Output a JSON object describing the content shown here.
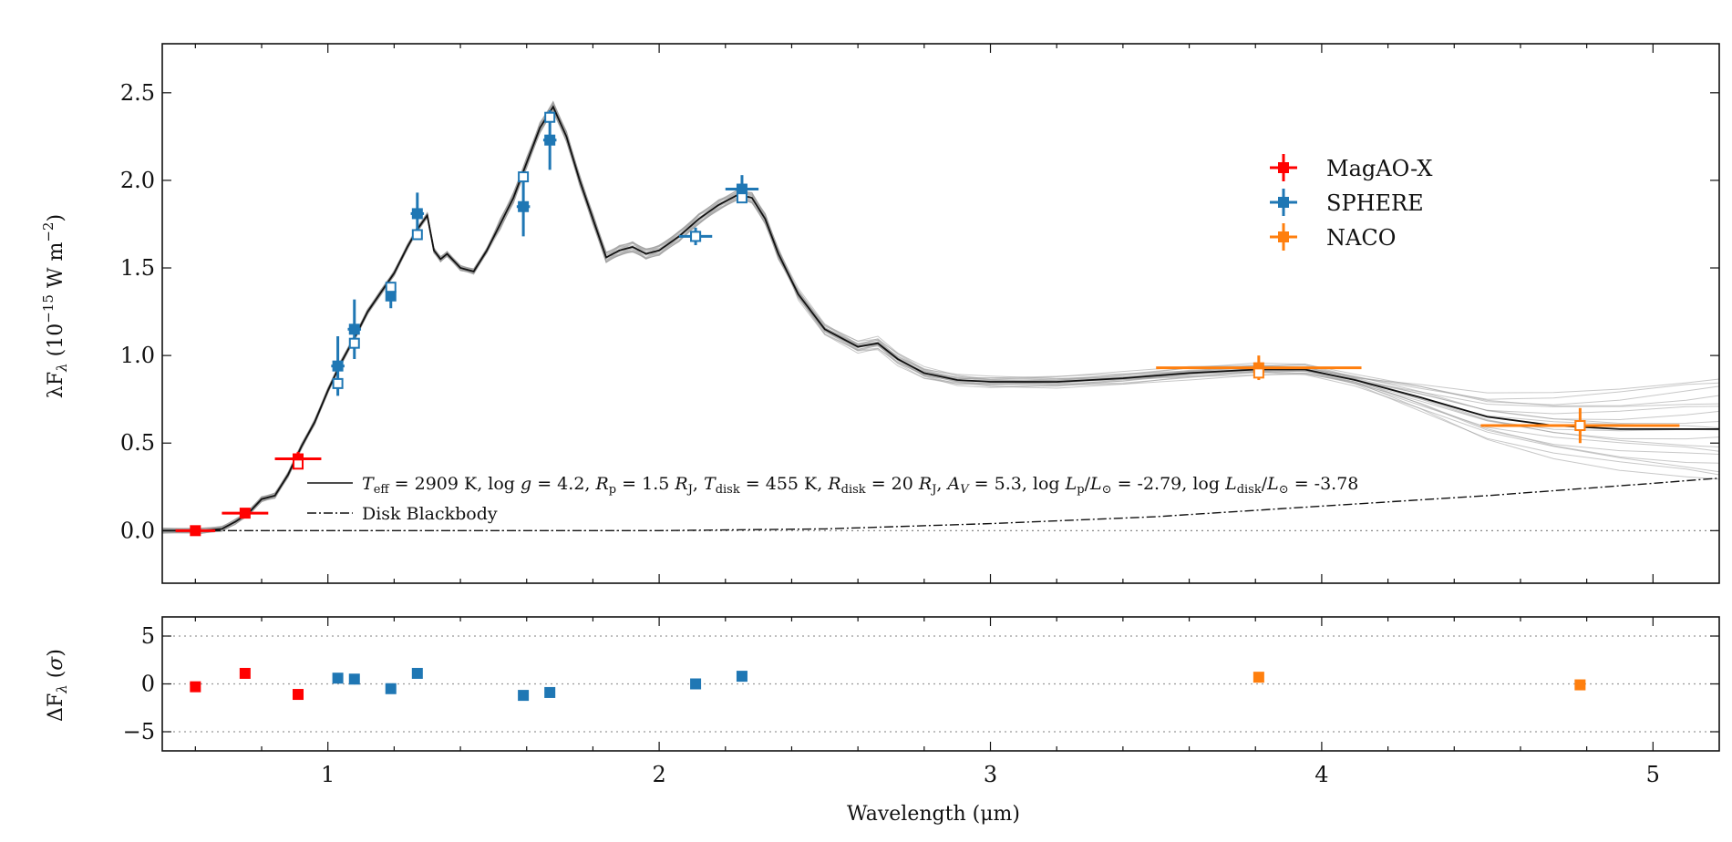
{
  "chart_data": [
    {
      "type": "scatter",
      "panel": "main",
      "ylabel_html": "λF<tspan font-size='15' dy='5' font-style='italic'>λ</tspan><tspan dy='-5'> (10</tspan><tspan font-size='15' dy='-10'>−15</tspan><tspan dy='10'> W m</tspan><tspan font-size='15' dy='-10'>−2</tspan><tspan dy='10'>)</tspan>",
      "ylabel": "λFλ (10−15 W m−2)",
      "xlim": [
        0.5,
        5.2
      ],
      "ylim": [
        -0.3,
        2.78
      ],
      "yticks": [
        0.0,
        0.5,
        1.0,
        1.5,
        2.0,
        2.5
      ],
      "ytick_labels": [
        "0.0",
        "0.5",
        "1.0",
        "1.5",
        "2.0",
        "2.5"
      ],
      "legend": {
        "placement": "upper-right-center",
        "entries": [
          {
            "name": "MagAO-X",
            "color": "#ff0000"
          },
          {
            "name": "SPHERE",
            "color": "#1f77b4"
          },
          {
            "name": "NACO",
            "color": "#ff7f0e"
          }
        ]
      },
      "line_legend": {
        "model_label": "T_eff = 2909 K, log g = 4.2, R_p = 1.5 R_J, T_disk = 455 K, R_disk = 20 R_J, A_V = 5.3, log L_p/L⊙ = -2.79, log L_disk/L⊙ = -3.78",
        "blackbody_label": "Disk Blackbody"
      },
      "model_curve": {
        "x": [
          0.5,
          0.62,
          0.68,
          0.72,
          0.76,
          0.8,
          0.84,
          0.88,
          0.92,
          0.96,
          1.0,
          1.04,
          1.08,
          1.12,
          1.16,
          1.2,
          1.24,
          1.27,
          1.3,
          1.32,
          1.34,
          1.36,
          1.4,
          1.44,
          1.48,
          1.52,
          1.56,
          1.6,
          1.64,
          1.68,
          1.72,
          1.76,
          1.8,
          1.84,
          1.88,
          1.92,
          1.96,
          2.0,
          2.06,
          2.12,
          2.18,
          2.24,
          2.28,
          2.32,
          2.36,
          2.42,
          2.5,
          2.6,
          2.66,
          2.72,
          2.8,
          2.9,
          3.0,
          3.2,
          3.4,
          3.6,
          3.8,
          3.95,
          4.1,
          4.3,
          4.5,
          4.7,
          4.9,
          5.1,
          5.2
        ],
        "y": [
          0.0,
          0.0,
          0.01,
          0.05,
          0.1,
          0.18,
          0.2,
          0.32,
          0.48,
          0.62,
          0.8,
          0.96,
          1.1,
          1.25,
          1.36,
          1.47,
          1.62,
          1.72,
          1.8,
          1.6,
          1.55,
          1.58,
          1.5,
          1.48,
          1.6,
          1.75,
          1.9,
          2.1,
          2.3,
          2.42,
          2.25,
          2.0,
          1.78,
          1.56,
          1.6,
          1.62,
          1.58,
          1.6,
          1.68,
          1.78,
          1.86,
          1.92,
          1.9,
          1.78,
          1.58,
          1.35,
          1.15,
          1.05,
          1.07,
          0.98,
          0.9,
          0.86,
          0.85,
          0.85,
          0.87,
          0.9,
          0.92,
          0.92,
          0.86,
          0.76,
          0.65,
          0.6,
          0.58,
          0.58,
          0.58
        ]
      },
      "blackbody_curve": {
        "x": [
          0.5,
          1.0,
          1.5,
          2.0,
          2.5,
          3.0,
          3.5,
          4.0,
          4.5,
          5.0,
          5.2
        ],
        "y": [
          0.0,
          0.0,
          0.0,
          0.0,
          0.01,
          0.04,
          0.08,
          0.14,
          0.2,
          0.27,
          0.3
        ]
      },
      "series": [
        {
          "name": "MagAO-X",
          "color": "#ff0000",
          "points": [
            {
              "x": 0.6,
              "y": 0.0,
              "xerr": 0.06,
              "yerr": 0.01
            },
            {
              "x": 0.75,
              "y": 0.1,
              "xerr": 0.07,
              "yerr": 0.02
            },
            {
              "x": 0.91,
              "y": 0.41,
              "xerr": 0.07,
              "yerr": 0.04
            }
          ],
          "model_points": [
            {
              "x": 0.91,
              "y": 0.38
            }
          ]
        },
        {
          "name": "SPHERE",
          "color": "#1f77b4",
          "points": [
            {
              "x": 1.03,
              "y": 0.94,
              "xerr": 0.02,
              "yerr": 0.17
            },
            {
              "x": 1.08,
              "y": 1.15,
              "xerr": 0.02,
              "yerr": 0.17
            },
            {
              "x": 1.19,
              "y": 1.34,
              "xerr": 0.01,
              "yerr": 0.07
            },
            {
              "x": 1.27,
              "y": 1.81,
              "xerr": 0.02,
              "yerr": 0.12
            },
            {
              "x": 1.59,
              "y": 1.85,
              "xerr": 0.02,
              "yerr": 0.17
            },
            {
              "x": 1.67,
              "y": 2.23,
              "xerr": 0.02,
              "yerr": 0.17
            },
            {
              "x": 2.11,
              "y": 1.68,
              "xerr": 0.05,
              "yerr": 0.05
            },
            {
              "x": 2.25,
              "y": 1.95,
              "xerr": 0.05,
              "yerr": 0.08
            }
          ],
          "model_points": [
            {
              "x": 1.03,
              "y": 0.84
            },
            {
              "x": 1.08,
              "y": 1.07
            },
            {
              "x": 1.19,
              "y": 1.39
            },
            {
              "x": 1.27,
              "y": 1.69
            },
            {
              "x": 1.59,
              "y": 2.02
            },
            {
              "x": 1.67,
              "y": 2.36
            },
            {
              "x": 2.11,
              "y": 1.68
            },
            {
              "x": 2.25,
              "y": 1.9
            }
          ]
        },
        {
          "name": "NACO",
          "color": "#ff7f0e",
          "points": [
            {
              "x": 3.81,
              "y": 0.93,
              "xerr": 0.31,
              "yerr": 0.07
            },
            {
              "x": 4.78,
              "y": 0.6,
              "xerr": 0.3,
              "yerr": 0.1
            }
          ],
          "model_points": [
            {
              "x": 3.81,
              "y": 0.9
            },
            {
              "x": 4.78,
              "y": 0.6
            }
          ]
        }
      ]
    },
    {
      "type": "scatter",
      "panel": "residuals",
      "ylabel": "ΔFλ (σ)",
      "xlabel": "Wavelength (μm)",
      "xlim": [
        0.5,
        5.2
      ],
      "ylim": [
        -7,
        7
      ],
      "yticks": [
        5,
        0,
        -5
      ],
      "ytick_labels": [
        "5",
        "0",
        "−5"
      ],
      "xticks": [
        1,
        2,
        3,
        4,
        5
      ],
      "xtick_labels": [
        "1",
        "2",
        "3",
        "4",
        "5"
      ],
      "hlines": [
        5,
        0,
        -5
      ],
      "series": [
        {
          "name": "MagAO-X",
          "color": "#ff0000",
          "points": [
            {
              "x": 0.6,
              "y": -0.3
            },
            {
              "x": 0.75,
              "y": 1.1
            },
            {
              "x": 0.91,
              "y": -1.1
            }
          ]
        },
        {
          "name": "SPHERE",
          "color": "#1f77b4",
          "points": [
            {
              "x": 1.03,
              "y": 0.6
            },
            {
              "x": 1.08,
              "y": 0.5
            },
            {
              "x": 1.19,
              "y": -0.5
            },
            {
              "x": 1.27,
              "y": 1.1
            },
            {
              "x": 1.59,
              "y": -1.2
            },
            {
              "x": 1.67,
              "y": -0.9
            },
            {
              "x": 2.11,
              "y": 0.0
            },
            {
              "x": 2.25,
              "y": 0.8
            }
          ]
        },
        {
          "name": "NACO",
          "color": "#ff7f0e",
          "points": [
            {
              "x": 3.81,
              "y": 0.7
            },
            {
              "x": 4.78,
              "y": -0.1
            }
          ]
        }
      ]
    }
  ]
}
